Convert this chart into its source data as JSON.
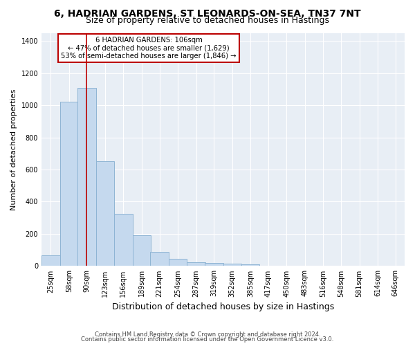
{
  "title1": "6, HADRIAN GARDENS, ST LEONARDS-ON-SEA, TN37 7NT",
  "title2": "Size of property relative to detached houses in Hastings",
  "xlabel": "Distribution of detached houses by size in Hastings",
  "ylabel": "Number of detached properties",
  "bin_left_edges": [
    25,
    58,
    90,
    123,
    156,
    189,
    221,
    254,
    287,
    319,
    352,
    385,
    417,
    450,
    483,
    516,
    548,
    581,
    614,
    646
  ],
  "bin_width": 33,
  "bar_heights": [
    65,
    1020,
    1110,
    650,
    325,
    190,
    90,
    45,
    25,
    20,
    15,
    10,
    0,
    0,
    0,
    0,
    0,
    0,
    0,
    0
  ],
  "bar_color": "#c5d9ee",
  "bar_edge_color": "#8eb4d4",
  "bar_linewidth": 0.7,
  "property_size": 106,
  "red_line_color": "#bb0000",
  "annotation_text": "6 HADRIAN GARDENS: 106sqm\n← 47% of detached houses are smaller (1,629)\n53% of semi-detached houses are larger (1,846) →",
  "annotation_box_color": "#ffffff",
  "annotation_border_color": "#bb0000",
  "ylim": [
    0,
    1450
  ],
  "yticks": [
    0,
    200,
    400,
    600,
    800,
    1000,
    1200,
    1400
  ],
  "plot_bg_color": "#e8eef5",
  "fig_bg_color": "#ffffff",
  "grid_color": "#ffffff",
  "title1_fontsize": 10,
  "title2_fontsize": 9,
  "xlabel_fontsize": 9,
  "ylabel_fontsize": 8,
  "tick_fontsize": 7,
  "footnote1": "Contains HM Land Registry data © Crown copyright and database right 2024.",
  "footnote2": "Contains public sector information licensed under the Open Government Licence v3.0."
}
